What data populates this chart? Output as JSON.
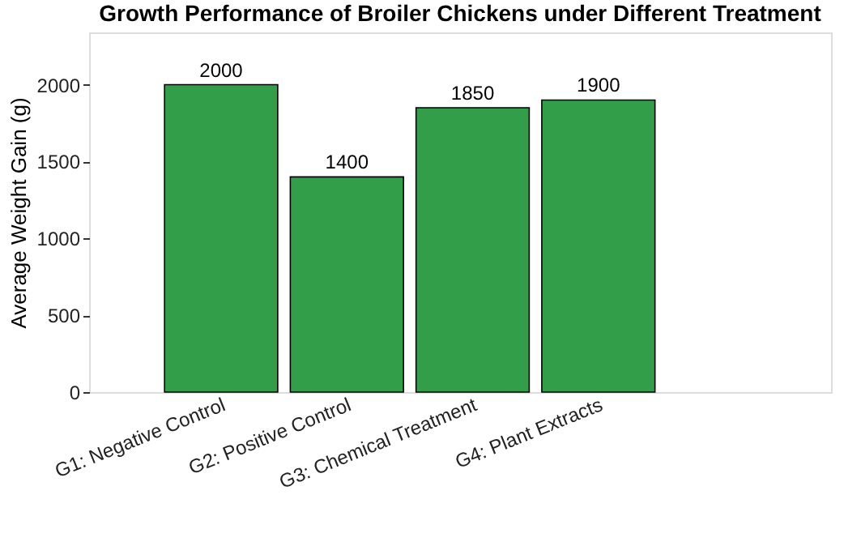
{
  "chart_data": {
    "type": "bar",
    "title": "Growth Performance of Broiler Chickens under Different Treatment",
    "ylabel": "Average Weight Gain (g)",
    "categories": [
      "G1: Negative Control",
      "G2: Positive Control",
      "G3: Chemical Treatment",
      "G4: Plant Extracts"
    ],
    "values": [
      2000,
      1400,
      1850,
      1900
    ],
    "color": "#339e4a",
    "ylim": [
      0,
      2340
    ],
    "yticks": [
      0,
      500,
      1000,
      1500,
      2000
    ],
    "grid": false,
    "data_labels": true
  }
}
